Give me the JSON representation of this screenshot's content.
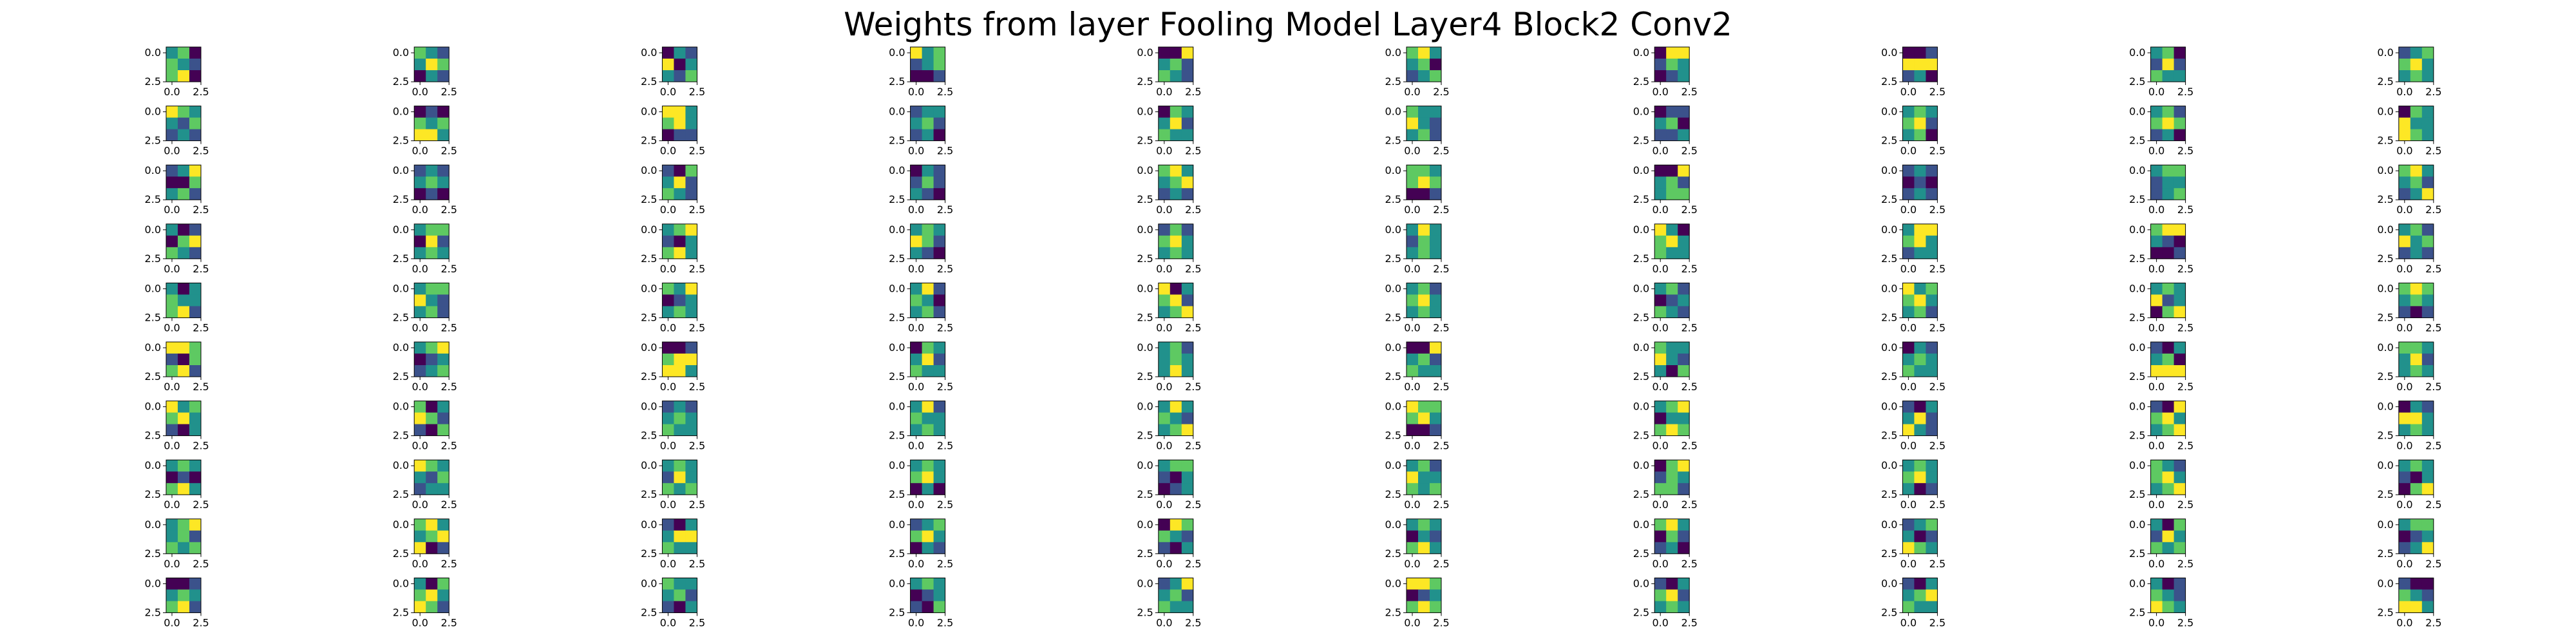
{
  "chart_data": {
    "type": "heatmap",
    "title": "Weights from layer Fooling Model Layer4 Block2 Conv2",
    "grid": false,
    "colormap": "viridis",
    "colors": [
      "#440154",
      "#3b528b",
      "#21918c",
      "#5ec962",
      "#fde725"
    ],
    "rows": 10,
    "cols": 10,
    "kernel_size": 3,
    "x_ticks": [
      0.0,
      2.5
    ],
    "x_tick_labels": [
      "0.0",
      "2.5"
    ],
    "y_ticks": [
      0.0,
      2.5
    ],
    "y_tick_labels": [
      "0.0",
      "2.5"
    ],
    "xlim": [
      -0.5,
      2.5
    ],
    "ylim": [
      2.5,
      -0.5
    ],
    "kernels": [
      [
        [
          2,
          3,
          0
        ],
        [
          3,
          2,
          1
        ],
        [
          3,
          4,
          0
        ]
      ],
      [
        [
          3,
          2,
          1
        ],
        [
          2,
          4,
          3
        ],
        [
          0,
          2,
          1
        ]
      ],
      [
        [
          0,
          2,
          1
        ],
        [
          4,
          0,
          2
        ],
        [
          2,
          1,
          3
        ]
      ],
      [
        [
          4,
          2,
          3
        ],
        [
          1,
          2,
          3
        ],
        [
          0,
          0,
          1
        ]
      ],
      [
        [
          0,
          0,
          4
        ],
        [
          2,
          3,
          1
        ],
        [
          3,
          2,
          1
        ]
      ],
      [
        [
          3,
          4,
          2
        ],
        [
          2,
          3,
          0
        ],
        [
          1,
          2,
          3
        ]
      ],
      [
        [
          0,
          4,
          4
        ],
        [
          1,
          3,
          2
        ],
        [
          0,
          1,
          2
        ]
      ],
      [
        [
          0,
          0,
          1
        ],
        [
          4,
          4,
          4
        ],
        [
          1,
          2,
          0
        ]
      ],
      [
        [
          2,
          3,
          0
        ],
        [
          1,
          4,
          1
        ],
        [
          3,
          2,
          2
        ]
      ],
      [
        [
          1,
          2,
          3
        ],
        [
          3,
          4,
          2
        ],
        [
          2,
          3,
          2
        ]
      ],
      [
        [
          4,
          3,
          2
        ],
        [
          2,
          1,
          3
        ],
        [
          1,
          2,
          1
        ]
      ],
      [
        [
          0,
          1,
          0
        ],
        [
          3,
          2,
          3
        ],
        [
          4,
          4,
          2
        ]
      ],
      [
        [
          4,
          4,
          2
        ],
        [
          3,
          4,
          2
        ],
        [
          0,
          1,
          1
        ]
      ],
      [
        [
          1,
          2,
          2
        ],
        [
          2,
          3,
          1
        ],
        [
          1,
          2,
          0
        ]
      ],
      [
        [
          0,
          3,
          2
        ],
        [
          2,
          4,
          1
        ],
        [
          3,
          2,
          2
        ]
      ],
      [
        [
          3,
          2,
          2
        ],
        [
          4,
          2,
          1
        ],
        [
          2,
          3,
          1
        ]
      ],
      [
        [
          0,
          1,
          1
        ],
        [
          2,
          3,
          0
        ],
        [
          1,
          1,
          2
        ]
      ],
      [
        [
          2,
          3,
          2
        ],
        [
          3,
          4,
          1
        ],
        [
          2,
          3,
          0
        ]
      ],
      [
        [
          2,
          3,
          1
        ],
        [
          3,
          4,
          3
        ],
        [
          1,
          2,
          0
        ]
      ],
      [
        [
          0,
          3,
          2
        ],
        [
          4,
          2,
          2
        ],
        [
          4,
          3,
          2
        ]
      ],
      [
        [
          1,
          2,
          4
        ],
        [
          0,
          0,
          3
        ],
        [
          2,
          3,
          1
        ]
      ],
      [
        [
          1,
          2,
          1
        ],
        [
          2,
          3,
          2
        ],
        [
          0,
          1,
          0
        ]
      ],
      [
        [
          1,
          0,
          3
        ],
        [
          2,
          4,
          1
        ],
        [
          3,
          2,
          1
        ]
      ],
      [
        [
          0,
          2,
          1
        ],
        [
          1,
          3,
          1
        ],
        [
          2,
          1,
          0
        ]
      ],
      [
        [
          3,
          4,
          2
        ],
        [
          2,
          3,
          4
        ],
        [
          1,
          2,
          1
        ]
      ],
      [
        [
          3,
          3,
          2
        ],
        [
          3,
          4,
          3
        ],
        [
          0,
          0,
          1
        ]
      ],
      [
        [
          0,
          0,
          4
        ],
        [
          2,
          3,
          1
        ],
        [
          2,
          3,
          3
        ]
      ],
      [
        [
          1,
          2,
          1
        ],
        [
          0,
          1,
          0
        ],
        [
          1,
          2,
          1
        ]
      ],
      [
        [
          2,
          3,
          3
        ],
        [
          1,
          2,
          2
        ],
        [
          1,
          2,
          3
        ]
      ],
      [
        [
          3,
          4,
          2
        ],
        [
          2,
          3,
          1
        ],
        [
          1,
          2,
          4
        ]
      ],
      [
        [
          2,
          0,
          1
        ],
        [
          0,
          3,
          4
        ],
        [
          3,
          2,
          1
        ]
      ],
      [
        [
          2,
          3,
          3
        ],
        [
          0,
          4,
          1
        ],
        [
          2,
          3,
          2
        ]
      ],
      [
        [
          2,
          3,
          4
        ],
        [
          1,
          0,
          2
        ],
        [
          3,
          4,
          2
        ]
      ],
      [
        [
          2,
          3,
          2
        ],
        [
          4,
          3,
          1
        ],
        [
          2,
          1,
          0
        ]
      ],
      [
        [
          1,
          3,
          1
        ],
        [
          3,
          4,
          2
        ],
        [
          2,
          3,
          2
        ]
      ],
      [
        [
          2,
          4,
          2
        ],
        [
          1,
          3,
          2
        ],
        [
          2,
          3,
          2
        ]
      ],
      [
        [
          4,
          2,
          0
        ],
        [
          3,
          4,
          2
        ],
        [
          3,
          2,
          2
        ]
      ],
      [
        [
          2,
          4,
          4
        ],
        [
          3,
          4,
          2
        ],
        [
          1,
          2,
          2
        ]
      ],
      [
        [
          3,
          4,
          4
        ],
        [
          2,
          1,
          0
        ],
        [
          0,
          0,
          1
        ]
      ],
      [
        [
          2,
          3,
          1
        ],
        [
          4,
          2,
          3
        ],
        [
          1,
          2,
          1
        ]
      ],
      [
        [
          2,
          0,
          2
        ],
        [
          3,
          2,
          2
        ],
        [
          3,
          4,
          1
        ]
      ],
      [
        [
          2,
          3,
          3
        ],
        [
          4,
          2,
          1
        ],
        [
          2,
          3,
          1
        ]
      ],
      [
        [
          3,
          2,
          4
        ],
        [
          0,
          1,
          2
        ],
        [
          2,
          3,
          2
        ]
      ],
      [
        [
          2,
          4,
          1
        ],
        [
          3,
          2,
          0
        ],
        [
          2,
          3,
          1
        ]
      ],
      [
        [
          4,
          0,
          2
        ],
        [
          3,
          4,
          1
        ],
        [
          2,
          3,
          4
        ]
      ],
      [
        [
          2,
          3,
          1
        ],
        [
          3,
          4,
          2
        ],
        [
          2,
          3,
          2
        ]
      ],
      [
        [
          2,
          3,
          1
        ],
        [
          0,
          1,
          2
        ],
        [
          3,
          2,
          1
        ]
      ],
      [
        [
          4,
          2,
          3
        ],
        [
          3,
          4,
          2
        ],
        [
          2,
          3,
          1
        ]
      ],
      [
        [
          2,
          3,
          2
        ],
        [
          4,
          1,
          2
        ],
        [
          0,
          3,
          4
        ]
      ],
      [
        [
          3,
          4,
          3
        ],
        [
          2,
          3,
          2
        ],
        [
          1,
          0,
          1
        ]
      ],
      [
        [
          4,
          4,
          3
        ],
        [
          1,
          0,
          3
        ],
        [
          3,
          4,
          1
        ]
      ],
      [
        [
          2,
          3,
          4
        ],
        [
          0,
          1,
          2
        ],
        [
          1,
          2,
          3
        ]
      ],
      [
        [
          0,
          0,
          1
        ],
        [
          3,
          4,
          4
        ],
        [
          4,
          4,
          2
        ]
      ],
      [
        [
          0,
          3,
          2
        ],
        [
          2,
          4,
          1
        ],
        [
          3,
          2,
          2
        ]
      ],
      [
        [
          2,
          3,
          1
        ],
        [
          2,
          3,
          2
        ],
        [
          2,
          4,
          2
        ]
      ],
      [
        [
          0,
          0,
          4
        ],
        [
          2,
          3,
          1
        ],
        [
          3,
          2,
          2
        ]
      ],
      [
        [
          3,
          2,
          2
        ],
        [
          4,
          2,
          1
        ],
        [
          2,
          0,
          3
        ]
      ],
      [
        [
          0,
          2,
          1
        ],
        [
          2,
          3,
          2
        ],
        [
          3,
          2,
          2
        ]
      ],
      [
        [
          1,
          0,
          2
        ],
        [
          2,
          3,
          0
        ],
        [
          4,
          4,
          4
        ]
      ],
      [
        [
          3,
          3,
          2
        ],
        [
          2,
          4,
          1
        ],
        [
          2,
          3,
          2
        ]
      ],
      [
        [
          4,
          2,
          3
        ],
        [
          3,
          4,
          2
        ],
        [
          1,
          0,
          2
        ]
      ],
      [
        [
          3,
          0,
          2
        ],
        [
          4,
          3,
          1
        ],
        [
          1,
          0,
          3
        ]
      ],
      [
        [
          1,
          2,
          1
        ],
        [
          2,
          3,
          2
        ],
        [
          3,
          2,
          2
        ]
      ],
      [
        [
          2,
          4,
          1
        ],
        [
          3,
          2,
          2
        ],
        [
          2,
          3,
          2
        ]
      ],
      [
        [
          2,
          4,
          2
        ],
        [
          3,
          2,
          1
        ],
        [
          2,
          3,
          4
        ]
      ],
      [
        [
          4,
          3,
          3
        ],
        [
          3,
          4,
          2
        ],
        [
          0,
          0,
          1
        ]
      ],
      [
        [
          2,
          3,
          4
        ],
        [
          0,
          2,
          2
        ],
        [
          3,
          4,
          3
        ]
      ],
      [
        [
          1,
          0,
          2
        ],
        [
          2,
          4,
          1
        ],
        [
          4,
          2,
          1
        ]
      ],
      [
        [
          1,
          0,
          4
        ],
        [
          3,
          4,
          2
        ],
        [
          2,
          3,
          4
        ]
      ],
      [
        [
          0,
          2,
          1
        ],
        [
          4,
          4,
          2
        ],
        [
          2,
          3,
          2
        ]
      ],
      [
        [
          2,
          3,
          2
        ],
        [
          0,
          1,
          0
        ],
        [
          3,
          4,
          2
        ]
      ],
      [
        [
          4,
          3,
          2
        ],
        [
          2,
          1,
          3
        ],
        [
          1,
          2,
          2
        ]
      ],
      [
        [
          2,
          3,
          2
        ],
        [
          1,
          4,
          2
        ],
        [
          3,
          2,
          3
        ]
      ],
      [
        [
          2,
          3,
          2
        ],
        [
          3,
          4,
          2
        ],
        [
          0,
          2,
          0
        ]
      ],
      [
        [
          2,
          3,
          3
        ],
        [
          1,
          0,
          2
        ],
        [
          0,
          1,
          2
        ]
      ],
      [
        [
          2,
          3,
          1
        ],
        [
          4,
          2,
          2
        ],
        [
          3,
          2,
          3
        ]
      ],
      [
        [
          0,
          3,
          4
        ],
        [
          1,
          3,
          2
        ],
        [
          3,
          3,
          1
        ]
      ],
      [
        [
          2,
          3,
          2
        ],
        [
          3,
          4,
          2
        ],
        [
          2,
          0,
          1
        ]
      ],
      [
        [
          3,
          2,
          1
        ],
        [
          3,
          4,
          2
        ],
        [
          2,
          3,
          4
        ]
      ],
      [
        [
          2,
          3,
          2
        ],
        [
          1,
          0,
          2
        ],
        [
          0,
          3,
          4
        ]
      ],
      [
        [
          2,
          3,
          4
        ],
        [
          2,
          3,
          1
        ],
        [
          3,
          2,
          3
        ]
      ],
      [
        [
          3,
          4,
          2
        ],
        [
          2,
          3,
          4
        ],
        [
          4,
          0,
          1
        ]
      ],
      [
        [
          1,
          0,
          2
        ],
        [
          2,
          4,
          4
        ],
        [
          3,
          2,
          2
        ]
      ],
      [
        [
          1,
          2,
          3
        ],
        [
          3,
          4,
          2
        ],
        [
          0,
          2,
          1
        ]
      ],
      [
        [
          0,
          4,
          3
        ],
        [
          3,
          2,
          1
        ],
        [
          1,
          0,
          2
        ]
      ],
      [
        [
          2,
          3,
          2
        ],
        [
          0,
          2,
          1
        ],
        [
          3,
          4,
          2
        ]
      ],
      [
        [
          3,
          4,
          2
        ],
        [
          0,
          3,
          1
        ],
        [
          1,
          2,
          0
        ]
      ],
      [
        [
          1,
          2,
          3
        ],
        [
          2,
          0,
          1
        ],
        [
          4,
          3,
          2
        ]
      ],
      [
        [
          2,
          0,
          3
        ],
        [
          1,
          4,
          2
        ],
        [
          3,
          2,
          3
        ]
      ],
      [
        [
          2,
          3,
          3
        ],
        [
          0,
          1,
          2
        ],
        [
          1,
          2,
          4
        ]
      ],
      [
        [
          0,
          0,
          1
        ],
        [
          2,
          3,
          2
        ],
        [
          3,
          4,
          1
        ]
      ],
      [
        [
          2,
          0,
          3
        ],
        [
          3,
          4,
          2
        ],
        [
          4,
          3,
          1
        ]
      ],
      [
        [
          3,
          2,
          2
        ],
        [
          2,
          3,
          1
        ],
        [
          1,
          0,
          2
        ]
      ],
      [
        [
          2,
          3,
          2
        ],
        [
          0,
          1,
          2
        ],
        [
          1,
          0,
          3
        ]
      ],
      [
        [
          1,
          2,
          4
        ],
        [
          2,
          3,
          1
        ],
        [
          3,
          2,
          2
        ]
      ],
      [
        [
          4,
          4,
          3
        ],
        [
          0,
          1,
          2
        ],
        [
          3,
          4,
          3
        ]
      ],
      [
        [
          1,
          0,
          2
        ],
        [
          3,
          4,
          1
        ],
        [
          2,
          3,
          2
        ]
      ],
      [
        [
          1,
          0,
          2
        ],
        [
          2,
          3,
          4
        ],
        [
          3,
          2,
          2
        ]
      ],
      [
        [
          2,
          0,
          1
        ],
        [
          3,
          2,
          1
        ],
        [
          4,
          3,
          2
        ]
      ],
      [
        [
          1,
          0,
          0
        ],
        [
          3,
          2,
          1
        ],
        [
          4,
          4,
          2
        ]
      ]
    ]
  }
}
